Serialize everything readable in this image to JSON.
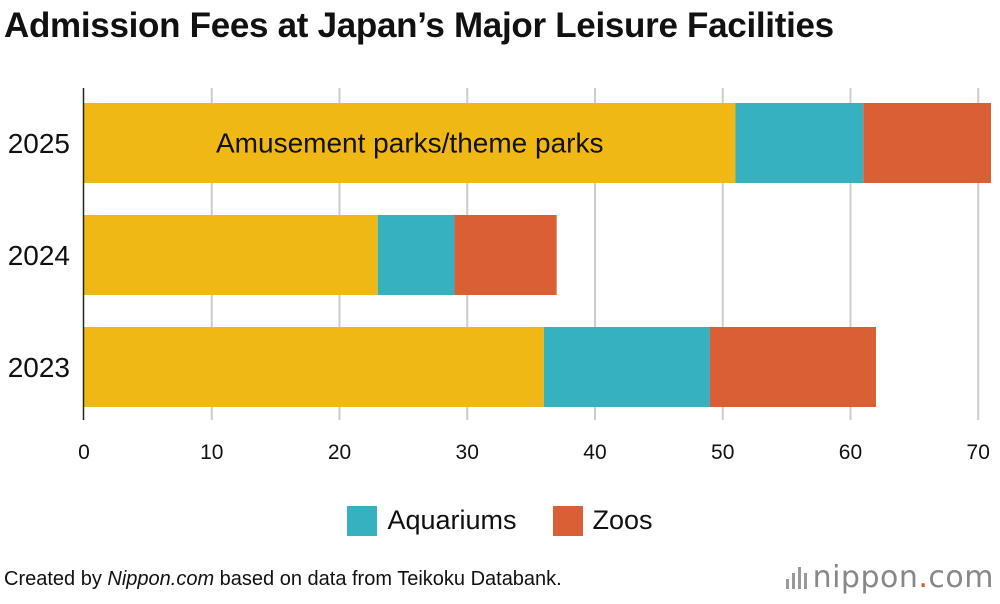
{
  "title": "Admission Fees at Japan’s Major Leisure Facilities",
  "chart_data": {
    "type": "bar",
    "orientation": "horizontal",
    "stacked": true,
    "categories": [
      "2025",
      "2024",
      "2023"
    ],
    "series": [
      {
        "name": "Amusement parks/theme parks",
        "color": "#F0B814",
        "values": [
          51,
          23,
          36
        ]
      },
      {
        "name": "Aquariums",
        "color": "#35B1C0",
        "values": [
          10,
          6,
          13
        ]
      },
      {
        "name": "Zoos",
        "color": "#DA5F34",
        "values": [
          10,
          8,
          13
        ]
      }
    ],
    "xlim": [
      0,
      71
    ],
    "xticks": [
      0,
      10,
      20,
      30,
      40,
      50,
      60,
      70
    ],
    "grid": true,
    "in_bar_label": "Amusement parks/theme parks",
    "legend": [
      "Aquariums",
      "Zoos"
    ],
    "legend_position": "bottom-center"
  },
  "footer": {
    "prefix": "Created by ",
    "source_site": "Nippon.com",
    "suffix": " based on data from Teikoku Databank."
  },
  "brand": {
    "name": "nippon",
    "dot": ".",
    "tld": "com"
  }
}
